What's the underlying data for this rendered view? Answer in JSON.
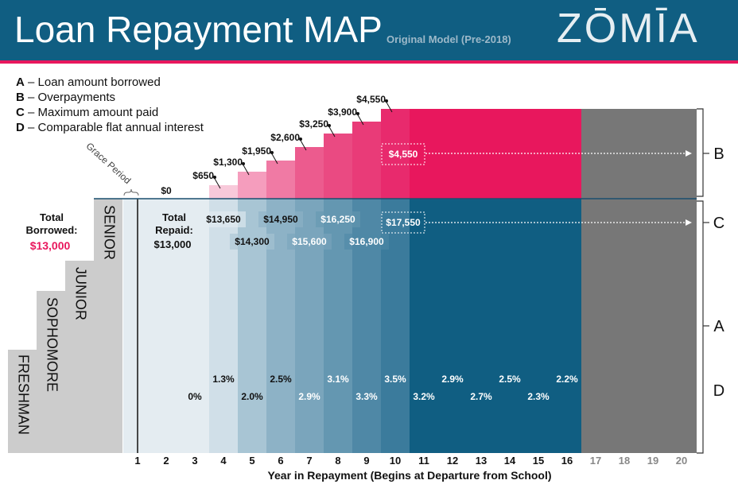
{
  "header": {
    "title": "Loan Repayment MAP",
    "subtitle": "Original Model (Pre-2018)",
    "logo": "ZŌMĪA",
    "colors": {
      "header_bg": "#105e82",
      "accent": "#e8175d"
    }
  },
  "legend": [
    {
      "key": "A",
      "text": " – Loan amount borrowed"
    },
    {
      "key": "B",
      "text": " – Overpayments"
    },
    {
      "key": "C",
      "text": " – Maximum amount paid"
    },
    {
      "key": "D",
      "text": " – Comparable flat annual interest"
    }
  ],
  "school_years": [
    "FRESHMAN",
    "SOPHOMORE",
    "JUNIOR",
    "SENIOR"
  ],
  "grace_period_label": "Grace Period",
  "total_borrowed": {
    "label": "Total\nBorrowed:",
    "label_lines": [
      "Total",
      "Borrowed:"
    ],
    "value": "$13,000"
  },
  "total_repaid": {
    "label_lines": [
      "Total",
      "Repaid:"
    ],
    "value": "$13,000"
  },
  "brackets": [
    "B",
    "C",
    "A",
    "D"
  ],
  "axis": {
    "xlabel": "Year in Repayment (Begins at Departure from School)",
    "ticks": [
      "1",
      "2",
      "3",
      "4",
      "5",
      "6",
      "7",
      "8",
      "9",
      "10",
      "11",
      "12",
      "13",
      "14",
      "15",
      "16",
      "17",
      "18",
      "19",
      "20"
    ]
  },
  "chart_data": {
    "type": "area",
    "overpayments": [
      {
        "year": 2,
        "label": "$0"
      },
      {
        "year": 4,
        "label": "$650"
      },
      {
        "year": 5,
        "label": "$1,300"
      },
      {
        "year": 6,
        "label": "$1,950"
      },
      {
        "year": 7,
        "label": "$2,600"
      },
      {
        "year": 8,
        "label": "$3,250"
      },
      {
        "year": 9,
        "label": "$3,900"
      },
      {
        "year": 10,
        "label": "$4,550"
      }
    ],
    "overpayment_boxed": "$4,550",
    "total_paid": [
      {
        "year": 4,
        "label": "$13,650"
      },
      {
        "year": 5,
        "label": "$14,300"
      },
      {
        "year": 6,
        "label": "$14,950"
      },
      {
        "year": 7,
        "label": "$15,600"
      },
      {
        "year": 8,
        "label": "$16,250"
      },
      {
        "year": 9,
        "label": "$16,900"
      }
    ],
    "total_paid_boxed": "$17,550",
    "flat_interest": [
      {
        "year": 3,
        "label": "0%"
      },
      {
        "year": 4,
        "label": "1.3%"
      },
      {
        "year": 5,
        "label": "2.0%"
      },
      {
        "year": 6,
        "label": "2.5%"
      },
      {
        "year": 7,
        "label": "2.9%"
      },
      {
        "year": 8,
        "label": "3.1%"
      },
      {
        "year": 9,
        "label": "3.3%"
      },
      {
        "year": 10,
        "label": "3.5%"
      },
      {
        "year": 11,
        "label": "3.2%"
      },
      {
        "year": 12,
        "label": "2.9%"
      },
      {
        "year": 13,
        "label": "2.7%"
      },
      {
        "year": 14,
        "label": "2.5%"
      },
      {
        "year": 15,
        "label": "2.3%"
      },
      {
        "year": 16,
        "label": "2.2%"
      }
    ]
  }
}
